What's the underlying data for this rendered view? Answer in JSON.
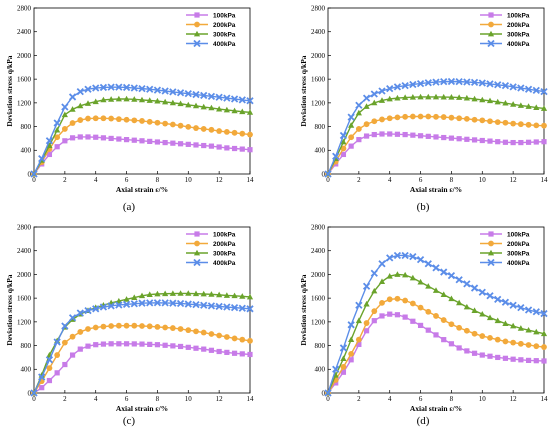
{
  "colors": {
    "s1": "#c77be8",
    "s2": "#f2a93b",
    "s3": "#6aa32b",
    "s4": "#5b8de8"
  },
  "markers": [
    "square",
    "circle",
    "triangle",
    "x"
  ],
  "chart_data": [
    {
      "type": "line",
      "panel_label": "(a)",
      "xlabel": "Axial strain ε/%",
      "ylabel": "Deviation stress q/kPa",
      "xlim": [
        0,
        14
      ],
      "ylim": [
        0,
        2800
      ],
      "xticks": [
        0,
        2,
        4,
        6,
        8,
        10,
        12,
        14
      ],
      "yticks": [
        0,
        400,
        800,
        1200,
        1600,
        2000,
        2400,
        2800
      ],
      "grid": false,
      "legend_position": "top-right",
      "x": [
        0,
        0.5,
        1,
        1.5,
        2,
        2.5,
        3,
        3.5,
        4,
        4.5,
        5,
        5.5,
        6,
        6.5,
        7,
        7.5,
        8,
        8.5,
        9,
        9.5,
        10,
        10.5,
        11,
        11.5,
        12,
        12.5,
        13,
        13.5,
        14
      ],
      "series": [
        {
          "name": "100kPa",
          "values": [
            0,
            170,
            330,
            460,
            560,
            610,
            625,
            625,
            620,
            610,
            600,
            590,
            580,
            570,
            560,
            550,
            540,
            530,
            520,
            510,
            500,
            490,
            480,
            470,
            455,
            440,
            430,
            420,
            410
          ]
        },
        {
          "name": "200kPa",
          "values": [
            0,
            200,
            420,
            620,
            760,
            860,
            910,
            935,
            940,
            940,
            935,
            925,
            915,
            905,
            895,
            880,
            865,
            850,
            835,
            815,
            795,
            775,
            760,
            745,
            725,
            710,
            695,
            680,
            665
          ]
        },
        {
          "name": "300kPa",
          "values": [
            0,
            230,
            480,
            740,
            1000,
            1090,
            1150,
            1190,
            1220,
            1250,
            1260,
            1265,
            1265,
            1260,
            1250,
            1240,
            1230,
            1215,
            1200,
            1185,
            1165,
            1150,
            1130,
            1115,
            1095,
            1080,
            1065,
            1050,
            1040
          ]
        },
        {
          "name": "400kPa",
          "values": [
            0,
            260,
            560,
            860,
            1130,
            1300,
            1390,
            1430,
            1450,
            1460,
            1465,
            1465,
            1460,
            1450,
            1440,
            1430,
            1415,
            1400,
            1385,
            1370,
            1355,
            1340,
            1325,
            1310,
            1295,
            1280,
            1265,
            1250,
            1235
          ]
        }
      ]
    },
    {
      "type": "line",
      "panel_label": "(b)",
      "xlabel": "Axial strain ε/%",
      "ylabel": "Deviation stress q/kPa",
      "xlim": [
        0,
        14
      ],
      "ylim": [
        0,
        2800
      ],
      "xticks": [
        0,
        2,
        4,
        6,
        8,
        10,
        12,
        14
      ],
      "yticks": [
        0,
        400,
        800,
        1200,
        1600,
        2000,
        2400,
        2800
      ],
      "grid": false,
      "legend_position": "top-right",
      "x": [
        0,
        0.5,
        1,
        1.5,
        2,
        2.5,
        3,
        3.5,
        4,
        4.5,
        5,
        5.5,
        6,
        6.5,
        7,
        7.5,
        8,
        8.5,
        9,
        9.5,
        10,
        10.5,
        11,
        11.5,
        12,
        12.5,
        13,
        13.5,
        14
      ],
      "series": [
        {
          "name": "100kPa",
          "values": [
            0,
            170,
            330,
            470,
            580,
            640,
            665,
            675,
            675,
            670,
            665,
            655,
            645,
            635,
            625,
            615,
            605,
            595,
            585,
            575,
            565,
            555,
            545,
            535,
            530,
            530,
            535,
            540,
            545
          ]
        },
        {
          "name": "200kPa",
          "values": [
            0,
            210,
            430,
            620,
            760,
            840,
            890,
            920,
            940,
            955,
            965,
            970,
            970,
            970,
            965,
            960,
            950,
            940,
            930,
            915,
            905,
            890,
            875,
            865,
            850,
            840,
            830,
            820,
            815
          ]
        },
        {
          "name": "300kPa",
          "values": [
            0,
            260,
            540,
            820,
            1030,
            1140,
            1200,
            1240,
            1265,
            1280,
            1290,
            1295,
            1300,
            1300,
            1300,
            1298,
            1295,
            1290,
            1280,
            1265,
            1250,
            1235,
            1215,
            1195,
            1175,
            1155,
            1140,
            1120,
            1105
          ]
        },
        {
          "name": "400kPa",
          "values": [
            0,
            300,
            650,
            960,
            1160,
            1280,
            1350,
            1400,
            1440,
            1470,
            1490,
            1510,
            1525,
            1540,
            1550,
            1558,
            1560,
            1558,
            1552,
            1545,
            1535,
            1520,
            1505,
            1490,
            1470,
            1450,
            1430,
            1410,
            1390
          ]
        }
      ]
    },
    {
      "type": "line",
      "panel_label": "(c)",
      "xlabel": "Axial strain ε/%",
      "ylabel": "Deviation stress q/kPa",
      "xlim": [
        0,
        14
      ],
      "ylim": [
        0,
        2800
      ],
      "xticks": [
        0,
        2,
        4,
        6,
        8,
        10,
        12,
        14
      ],
      "yticks": [
        0,
        400,
        800,
        1200,
        1600,
        2000,
        2400,
        2800
      ],
      "grid": false,
      "legend_position": "top-right",
      "x": [
        0,
        0.5,
        1,
        1.5,
        2,
        2.5,
        3,
        3.5,
        4,
        4.5,
        5,
        5.5,
        6,
        6.5,
        7,
        7.5,
        8,
        8.5,
        9,
        9.5,
        10,
        10.5,
        11,
        11.5,
        12,
        12.5,
        13,
        13.5,
        14
      ],
      "series": [
        {
          "name": "100kPa",
          "values": [
            0,
            90,
            210,
            340,
            480,
            640,
            740,
            790,
            815,
            825,
            830,
            830,
            830,
            828,
            825,
            820,
            815,
            805,
            795,
            785,
            770,
            755,
            740,
            720,
            700,
            685,
            670,
            660,
            650
          ]
        },
        {
          "name": "200kPa",
          "values": [
            0,
            200,
            420,
            640,
            850,
            950,
            1030,
            1080,
            1105,
            1120,
            1130,
            1135,
            1135,
            1135,
            1130,
            1125,
            1115,
            1105,
            1095,
            1080,
            1060,
            1040,
            1020,
            995,
            970,
            945,
            920,
            900,
            880
          ]
        },
        {
          "name": "300kPa",
          "values": [
            0,
            300,
            640,
            880,
            1110,
            1240,
            1330,
            1390,
            1440,
            1480,
            1520,
            1550,
            1580,
            1610,
            1640,
            1660,
            1670,
            1675,
            1678,
            1680,
            1680,
            1675,
            1670,
            1665,
            1655,
            1645,
            1640,
            1630,
            1620
          ]
        },
        {
          "name": "400kPa",
          "values": [
            0,
            270,
            560,
            860,
            1130,
            1270,
            1350,
            1390,
            1420,
            1450,
            1470,
            1485,
            1495,
            1505,
            1515,
            1520,
            1522,
            1520,
            1515,
            1510,
            1500,
            1490,
            1480,
            1470,
            1460,
            1450,
            1440,
            1430,
            1420
          ]
        }
      ]
    },
    {
      "type": "line",
      "panel_label": "(d)",
      "xlabel": "Axial strain ε/%",
      "ylabel": "Deviation stress q/kPa",
      "xlim": [
        0,
        14
      ],
      "ylim": [
        0,
        2800
      ],
      "xticks": [
        0,
        2,
        4,
        6,
        8,
        10,
        12,
        14
      ],
      "yticks": [
        0,
        400,
        800,
        1200,
        1600,
        2000,
        2400,
        2800
      ],
      "grid": false,
      "legend_position": "top-right",
      "x": [
        0,
        0.5,
        1,
        1.5,
        2,
        2.5,
        3,
        3.5,
        4,
        4.5,
        5,
        5.5,
        6,
        6.5,
        7,
        7.5,
        8,
        8.5,
        9,
        9.5,
        10,
        10.5,
        11,
        11.5,
        12,
        12.5,
        13,
        13.5,
        14
      ],
      "series": [
        {
          "name": "100kPa",
          "values": [
            0,
            170,
            350,
            560,
            820,
            1050,
            1220,
            1300,
            1330,
            1320,
            1280,
            1210,
            1140,
            1060,
            980,
            900,
            830,
            760,
            710,
            670,
            640,
            620,
            600,
            585,
            570,
            560,
            550,
            545,
            540
          ]
        },
        {
          "name": "200kPa",
          "values": [
            0,
            220,
            440,
            660,
            900,
            1180,
            1380,
            1520,
            1580,
            1590,
            1560,
            1510,
            1440,
            1370,
            1300,
            1230,
            1160,
            1100,
            1050,
            1000,
            960,
            930,
            900,
            870,
            850,
            830,
            810,
            790,
            775
          ]
        },
        {
          "name": "300kPa",
          "values": [
            0,
            300,
            580,
            900,
            1220,
            1500,
            1720,
            1880,
            1970,
            2000,
            1990,
            1940,
            1870,
            1800,
            1730,
            1660,
            1590,
            1520,
            1450,
            1390,
            1330,
            1270,
            1220,
            1170,
            1130,
            1090,
            1060,
            1030,
            1000
          ]
        },
        {
          "name": "400kPa",
          "values": [
            0,
            400,
            760,
            1150,
            1480,
            1800,
            2020,
            2180,
            2280,
            2320,
            2320,
            2300,
            2250,
            2180,
            2110,
            2040,
            1980,
            1910,
            1840,
            1770,
            1700,
            1640,
            1580,
            1530,
            1480,
            1440,
            1400,
            1370,
            1340
          ]
        }
      ]
    }
  ]
}
